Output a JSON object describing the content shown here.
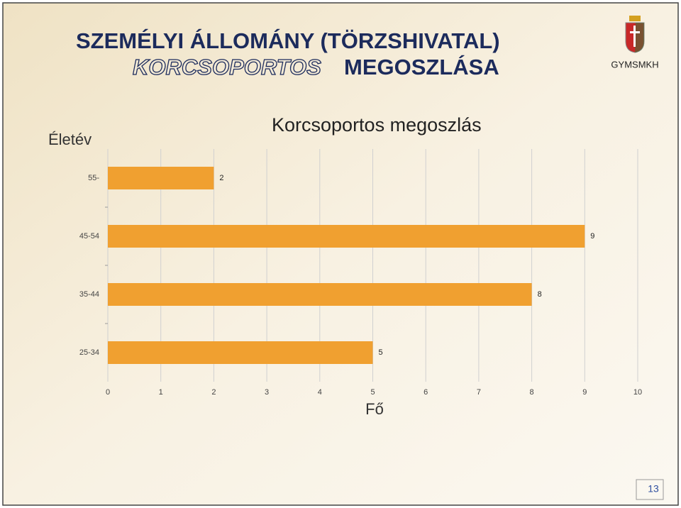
{
  "slide": {
    "title_line1": "SZEMÉLYI ÁLLOMÁNY (TÖRZSHIVATAL)",
    "title_line2_italic": "KORCSOPORTOS",
    "title_line2_rest": "MEGOSZLÁSA",
    "logo_text": "GYMSMKH",
    "page_number": "13"
  },
  "chart_data": {
    "type": "hbar",
    "title": "Korcsoportos megoszlás",
    "ylabel": "Életév",
    "xlabel": "Fő",
    "categories": [
      "55-",
      "45-54",
      "35-44",
      "25-34"
    ],
    "values": [
      2,
      9,
      8,
      5
    ],
    "color": "#f0a030",
    "xlim": [
      0,
      10
    ],
    "xticks": [
      0,
      1,
      2,
      3,
      4,
      5,
      6,
      7,
      8,
      9,
      10
    ],
    "grid": true
  }
}
